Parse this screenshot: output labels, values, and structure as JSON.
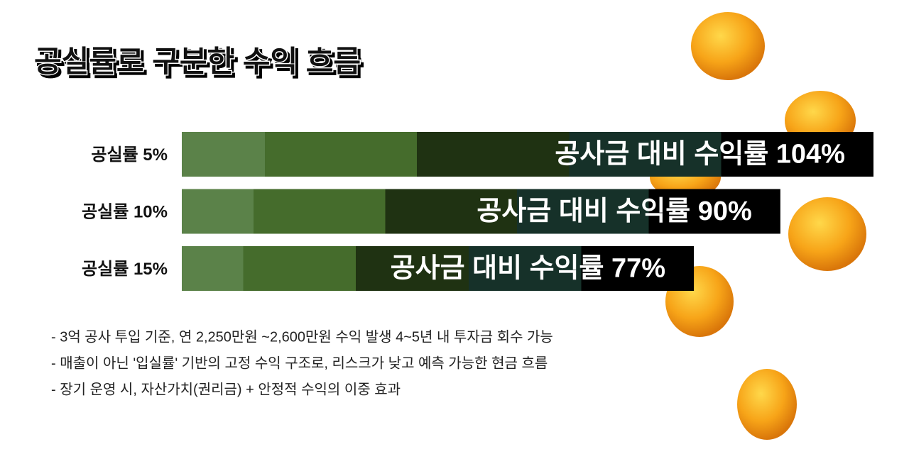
{
  "chart_data": {
    "type": "hbar",
    "title": "공실률로 구분한 수익 흐름",
    "categories": [
      "공실률 5%",
      "공실률 10%",
      "공실률 15%"
    ],
    "values": [
      104,
      90,
      77
    ],
    "value_labels": [
      "공사금 대비 수익률 104%",
      "공사금 대비 수익률 90%",
      "공사금 대비 수익률 77%"
    ],
    "segment_colors": [
      "#5b8249",
      "#456c2c",
      "#1f3212",
      "#163129",
      "#000000"
    ],
    "notes": [
      "- 3억 공사 투입 기준, 연 2,250만원 ~2,600만원 수익 발생 4~5년 내 투자금 회수 가능",
      "- 매출이 아닌 '입실률' 기반의 고정 수익 구조로, 리스크가 낮고 예측 가능한 현금 흐름",
      "- 장기 운영 시, 자산가치(권리금) + 안정적 수익의 이중 효과"
    ]
  }
}
